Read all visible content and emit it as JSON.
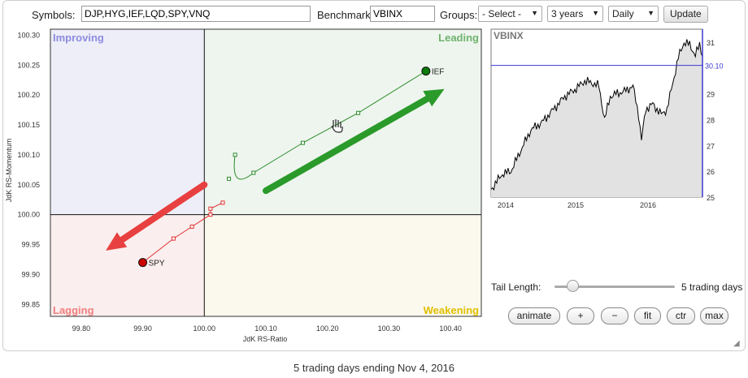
{
  "toolbar": {
    "symbols_label": "Symbols:",
    "symbols_value": "DJP,HYG,IEF,LQD,SPY,VNQ",
    "benchmark_label": "Benchmark:",
    "benchmark_value": "VBINX",
    "groups_label": "Groups:",
    "groups_selected": "- Select -",
    "period_selected": "3 years",
    "frequency_selected": "Daily",
    "update_label": "Update"
  },
  "chart_data": [
    {
      "type": "scatter",
      "name": "Relative Rotation Graph",
      "xlabel": "JdK RS-Ratio",
      "ylabel": "JdK RS-Momentum",
      "xlim": [
        99.75,
        100.45
      ],
      "ylim": [
        99.83,
        100.31
      ],
      "x_ticks": [
        "99.80",
        "99.90",
        "100.00",
        "100.10",
        "100.20",
        "100.30",
        "100.40"
      ],
      "y_ticks": [
        "100.30",
        "100.25",
        "100.20",
        "100.15",
        "100.10",
        "100.05",
        "100.00",
        "99.95",
        "99.90",
        "99.85"
      ],
      "quadrants": {
        "top_left": {
          "label": "Improving",
          "color": "#8c8ce0"
        },
        "top_right": {
          "label": "Leading",
          "color": "#6fb36f"
        },
        "bottom_left": {
          "label": "Lagging",
          "color": "#f08080"
        },
        "bottom_right": {
          "label": "Weakening",
          "color": "#e0c000"
        }
      },
      "series": [
        {
          "name": "IEF",
          "color": "#2a8a2a",
          "point_color": "#0b7a0b",
          "points": [
            [
              100.05,
              100.1
            ],
            [
              100.08,
              100.07
            ],
            [
              100.16,
              100.12
            ],
            [
              100.25,
              100.17
            ],
            [
              100.36,
              100.24
            ]
          ],
          "head": [
            100.36,
            100.24
          ],
          "tail_start_prev": [
            100.04,
            100.06
          ]
        },
        {
          "name": "SPY",
          "color": "#e03030",
          "point_color": "#cc0000",
          "points": [
            [
              100.03,
              100.02
            ],
            [
              100.01,
              100.01
            ],
            [
              100.01,
              100.0
            ],
            [
              99.98,
              99.98
            ],
            [
              99.95,
              99.96
            ],
            [
              99.9,
              99.92
            ]
          ],
          "head": [
            99.9,
            99.92
          ]
        }
      ],
      "arrows": [
        {
          "color": "#2a9a2a",
          "from": [
            100.1,
            100.04
          ],
          "to": [
            100.39,
            100.21
          ]
        },
        {
          "color": "#e84040",
          "from": [
            100.0,
            100.05
          ],
          "to": [
            99.84,
            99.94
          ]
        }
      ]
    },
    {
      "type": "area",
      "name": "VBINX",
      "title": "VBINX",
      "x_ticks": [
        "2014",
        "2015",
        "2016"
      ],
      "y_ticks": [
        "31",
        "30",
        "29",
        "28",
        "27",
        "26",
        "25"
      ],
      "current_value": "30.10",
      "ylim": [
        25,
        31.5
      ]
    }
  ],
  "controls": {
    "tail_length_label": "Tail Length:",
    "tail_length_value": "5 trading days",
    "tail_fraction": 0.12,
    "buttons": [
      "animate",
      "+",
      "−",
      "fit",
      "ctr",
      "max"
    ]
  },
  "footer": "5 trading days ending Nov 4, 2016"
}
